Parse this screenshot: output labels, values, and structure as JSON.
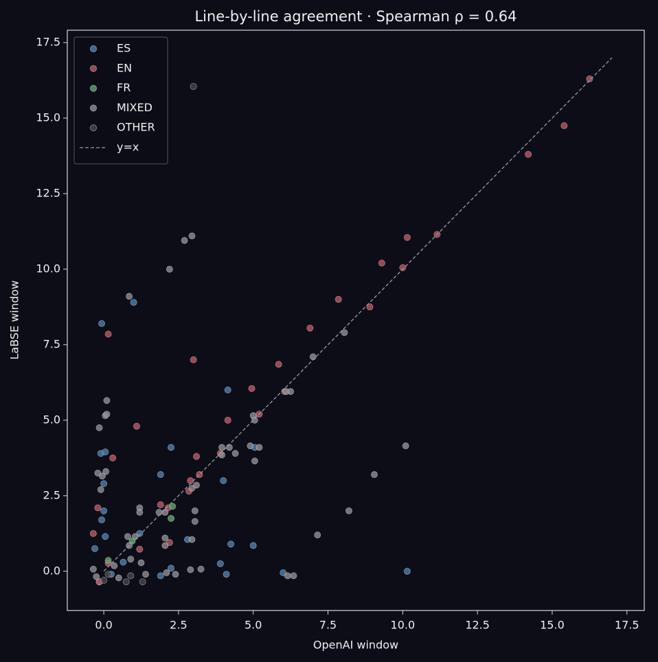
{
  "chart_data": {
    "type": "scatter",
    "title": "Line-by-line agreement  ·  Spearman ρ = 0.64",
    "x_label": "OpenAI window",
    "y_label": "LaBSE window",
    "xlim": [
      -1.22,
      18.08
    ],
    "ylim": [
      -1.3,
      17.91
    ],
    "xticks": [
      {
        "value": 0,
        "label": "0.0"
      },
      2.5,
      {
        "value": 5,
        "label": "5.0"
      },
      7.5,
      {
        "value": 10,
        "label": "10.0"
      },
      12.5,
      {
        "value": 15,
        "label": "15.0"
      },
      17.5
    ],
    "yticks": [
      {
        "value": 0,
        "label": "0.0"
      },
      2.5,
      {
        "value": 5,
        "label": "5.0"
      },
      7.5,
      {
        "value": 10,
        "label": "10.0"
      },
      12.5,
      {
        "value": 15,
        "label": "15.0"
      },
      17.5
    ],
    "grid": false,
    "legend": "upper left",
    "series": [
      {
        "name": "ES",
        "color": "#4a7fb0",
        "x": [
          -0.07,
          1.0,
          4.15,
          2.25,
          1.9,
          4.0,
          5.05,
          -0.1,
          0.05,
          0.0,
          0.0,
          -0.07,
          0.05,
          -0.3,
          4.25,
          5.0,
          2.8,
          3.9,
          4.1,
          10.15,
          6.0,
          1.9,
          0.65,
          1.2,
          -0.15,
          0.25,
          2.25
        ],
        "values": [
          8.2,
          8.9,
          6.0,
          4.1,
          3.2,
          3.0,
          4.1,
          3.9,
          3.95,
          2.9,
          2.0,
          1.7,
          1.15,
          0.75,
          0.9,
          0.85,
          1.05,
          0.25,
          -0.1,
          0.0,
          -0.05,
          -0.15,
          0.3,
          1.25,
          -0.35,
          -0.1,
          0.1
        ]
      },
      {
        "name": "EN",
        "color": "#c0565e",
        "x": [
          16.25,
          15.4,
          14.2,
          11.15,
          10.15,
          9.3,
          10.0,
          7.85,
          8.9,
          6.9,
          5.85,
          4.95,
          0.15,
          3.0,
          4.15,
          5.2,
          6.05,
          1.1,
          0.3,
          3.1,
          3.9,
          3.2,
          2.9,
          2.85,
          1.9,
          2.15,
          -0.2,
          -0.35,
          2.2,
          1.2,
          -0.15,
          0.15
        ],
        "values": [
          16.3,
          14.75,
          13.8,
          11.15,
          11.05,
          10.2,
          10.05,
          9.0,
          8.75,
          8.05,
          6.85,
          6.05,
          7.85,
          7.0,
          5.0,
          5.2,
          5.95,
          4.8,
          3.75,
          3.8,
          3.9,
          3.2,
          3.0,
          2.65,
          2.2,
          2.1,
          2.1,
          1.25,
          0.95,
          0.73,
          -0.35,
          0.27
        ]
      },
      {
        "name": "FR",
        "color": "#5fa86b",
        "x": [
          2.3,
          2.25,
          0.15,
          0.95
        ],
        "values": [
          2.15,
          1.75,
          0.36,
          1.0
        ]
      },
      {
        "name": "MIXED",
        "color": "#8e8e93",
        "x": [
          2.95,
          2.7,
          2.2,
          0.85,
          8.05,
          7.0,
          6.25,
          6.1,
          5.0,
          5.05,
          4.9,
          5.2,
          4.4,
          3.95,
          4.2,
          3.95,
          5.05,
          10.1,
          9.05,
          8.2,
          7.15,
          0.1,
          0.05,
          0.1,
          -0.15,
          -0.1,
          0.07,
          -0.05,
          -0.2,
          1.2,
          1.2,
          3.05,
          3.05,
          2.05,
          2.05,
          2.95,
          3.1,
          2.95,
          2.9,
          3.25,
          6.15,
          6.35,
          2.1,
          2.4,
          0.9,
          0.8,
          1.05,
          1.25,
          1.4,
          0.35,
          -0.35,
          -0.25,
          0.5,
          1.85,
          2.05,
          0.85
        ],
        "values": [
          11.1,
          10.95,
          10.0,
          9.1,
          7.9,
          7.1,
          5.95,
          5.95,
          5.15,
          5.0,
          4.15,
          4.1,
          3.9,
          4.1,
          4.1,
          3.85,
          3.65,
          4.15,
          3.2,
          2.0,
          1.2,
          5.65,
          5.15,
          5.2,
          4.75,
          2.7,
          3.3,
          3.15,
          3.25,
          2.1,
          1.95,
          2.0,
          1.65,
          1.1,
          0.85,
          1.05,
          2.85,
          2.75,
          0.05,
          0.07,
          -0.15,
          -0.15,
          -0.05,
          -0.1,
          0.4,
          1.15,
          1.15,
          0.28,
          -0.1,
          0.18,
          0.07,
          -0.18,
          -0.22,
          1.95,
          1.95,
          0.85
        ]
      },
      {
        "name": "OTHER",
        "color": "#46464c",
        "x": [
          3.0,
          0.75,
          0.0,
          1.3,
          0.9,
          0.15
        ],
        "values": [
          16.05,
          -0.35,
          -0.3,
          -0.35,
          -0.15,
          -0.1
        ]
      },
      {
        "name": "y=x",
        "type": "line",
        "dashed": true,
        "color": "#9c9ca6",
        "x": [
          0,
          17
        ],
        "values": [
          0,
          17
        ]
      }
    ]
  }
}
